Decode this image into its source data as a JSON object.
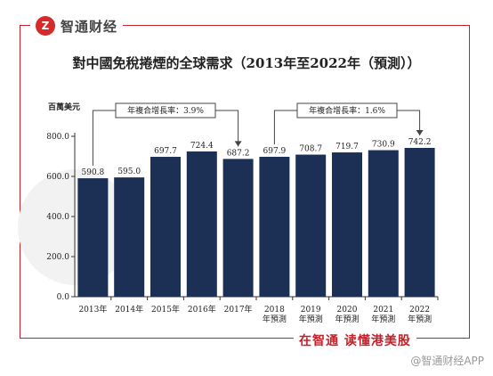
{
  "brand": {
    "mark": "Z",
    "name": "智通财经"
  },
  "slogan": "在智通 读懂港美股",
  "watermark": "@智通财经APP",
  "chart_data": {
    "type": "bar",
    "title": "對中國免稅捲煙的全球需求（2013年至2022年（預測））",
    "unit_label": "百萬美元",
    "categories": [
      [
        "2013年"
      ],
      [
        "2014年"
      ],
      [
        "2015年"
      ],
      [
        "2016年"
      ],
      [
        "2017年"
      ],
      [
        "2018",
        "年預測"
      ],
      [
        "2019",
        "年預測"
      ],
      [
        "2020",
        "年預測"
      ],
      [
        "2021",
        "年預測"
      ],
      [
        "2022",
        "年預測"
      ]
    ],
    "values": [
      590.8,
      595.0,
      697.7,
      724.4,
      687.2,
      697.9,
      708.7,
      719.7,
      730.9,
      742.2
    ],
    "value_labels": [
      "590.8",
      "595.0",
      "697.7",
      "724.4",
      "687.2",
      "697.9",
      "708.7",
      "719.7",
      "730.9",
      "742.2"
    ],
    "yticks": [
      "0.0",
      "200.0",
      "400.0",
      "600.0",
      "800.0"
    ],
    "ylim": [
      0,
      800
    ],
    "bar_color": "#1c2f55",
    "annotations": [
      {
        "text": "年複合增長率：3.9%",
        "from_index": 0,
        "to_index": 4
      },
      {
        "text": "年複合增長率：1.6%",
        "from_index": 5,
        "to_index": 9
      }
    ]
  }
}
